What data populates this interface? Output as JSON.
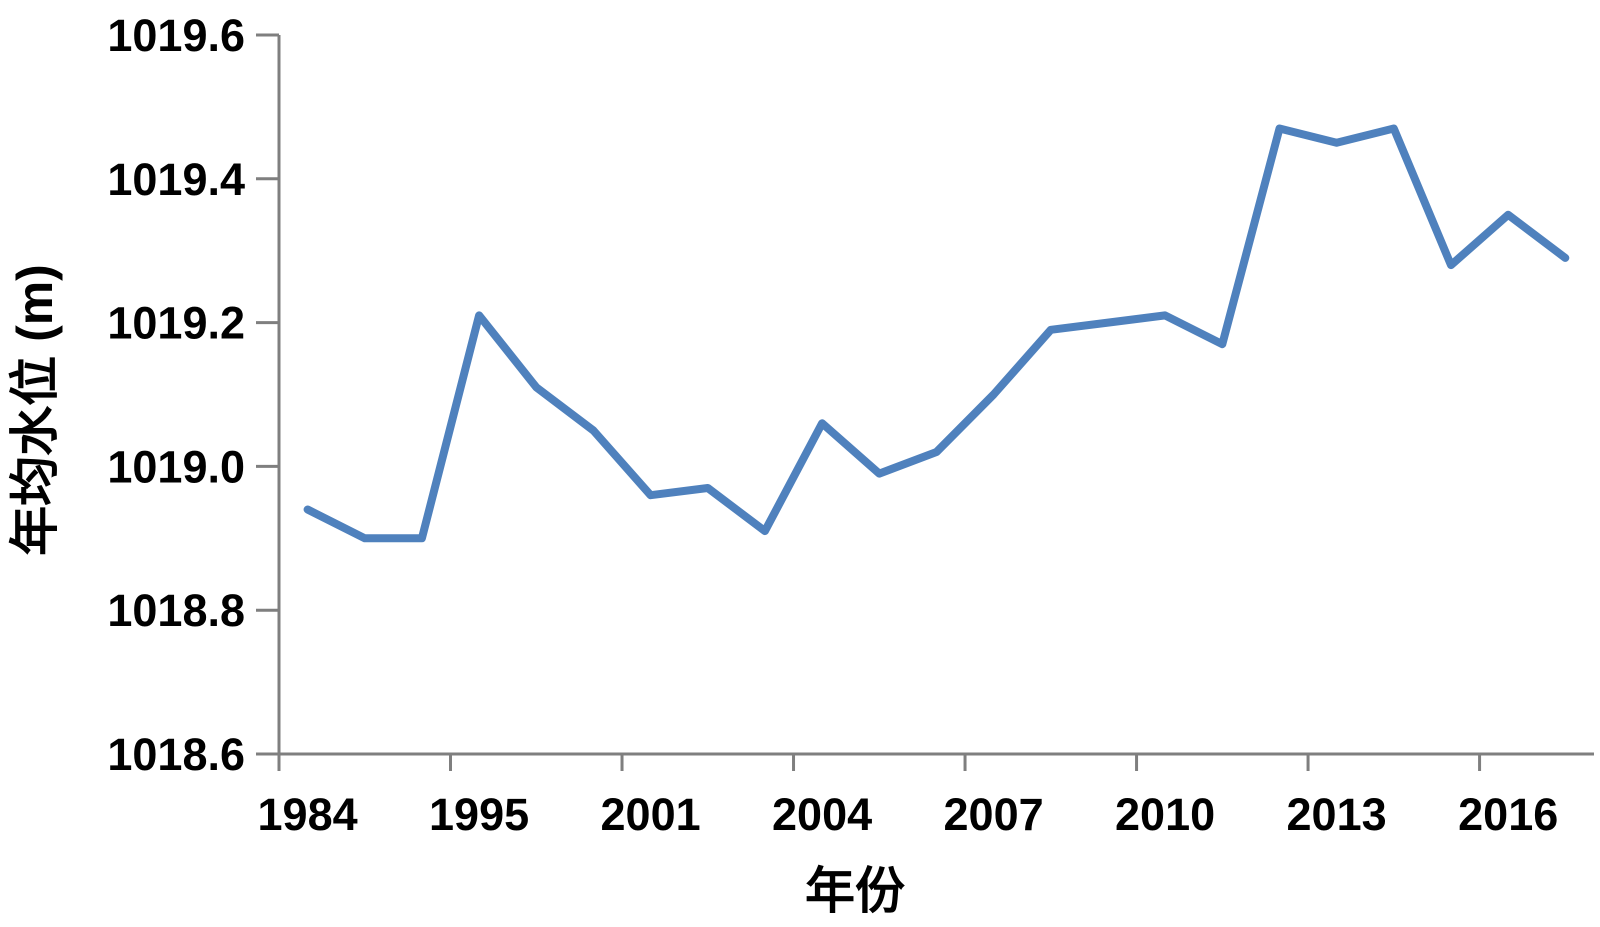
{
  "chart_data": {
    "type": "line",
    "title": "",
    "xlabel": "年份",
    "ylabel": "年均水位 (m)",
    "ylim": [
      1018.6,
      1019.6
    ],
    "y_tick_step": 0.2,
    "y_tick_labels": [
      "1018.6",
      "1018.8",
      "1019.0",
      "1019.2",
      "1019.4",
      "1019.6"
    ],
    "x_tick_labels": [
      "1984",
      "1995",
      "2001",
      "2004",
      "2007",
      "2010",
      "2013",
      "2016"
    ],
    "x_label_category_indices": [
      0,
      3,
      6,
      9,
      12,
      15,
      18,
      21
    ],
    "n_points": 23,
    "values": [
      1018.94,
      1018.9,
      1018.9,
      1019.21,
      1019.11,
      1019.05,
      1018.96,
      1018.97,
      1018.91,
      1019.06,
      1018.99,
      1019.02,
      1019.1,
      1019.19,
      1019.2,
      1019.21,
      1019.17,
      1019.47,
      1019.45,
      1019.47,
      1019.28,
      1019.35,
      1019.29
    ],
    "series_color": "#4f81bd",
    "axis_color": "#7f7f7f",
    "text_color": "#000000",
    "grid": false,
    "legend": "none",
    "x_axis_style": "categorical, ticks at every 3rd category boundary, labels centered under categories"
  }
}
